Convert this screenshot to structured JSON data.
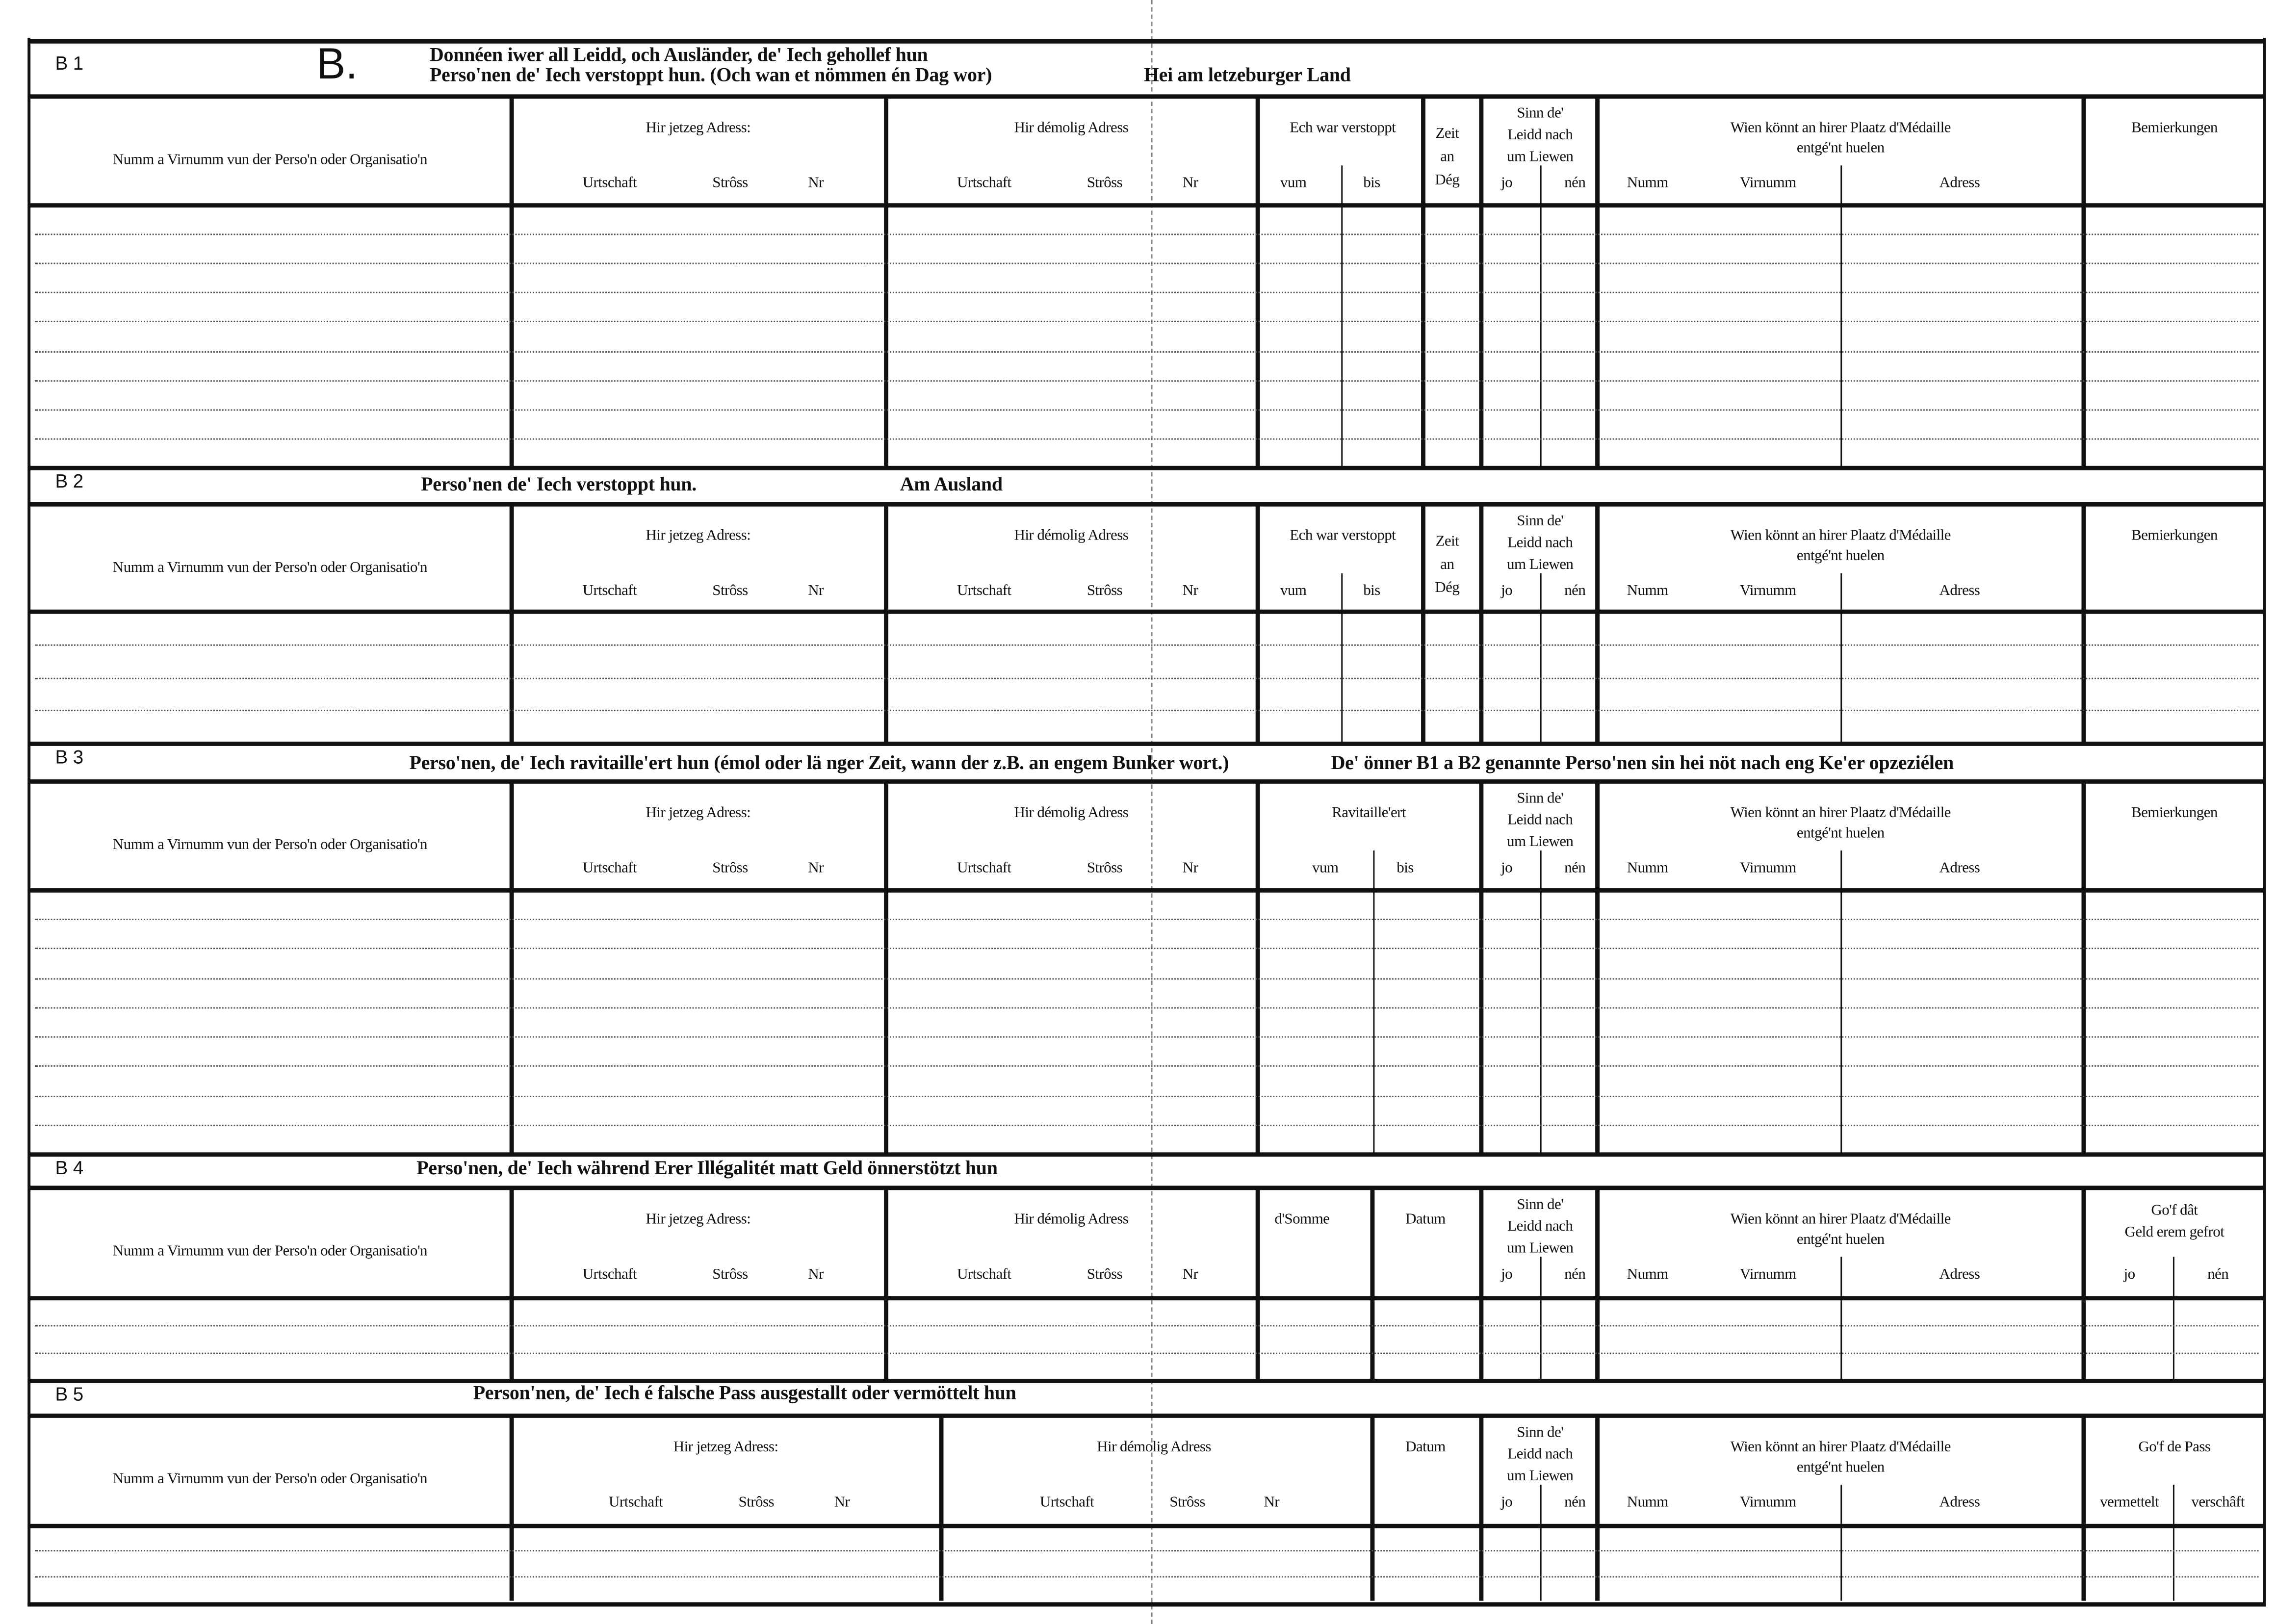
{
  "columns": {
    "name": "Numm a Virnumm vun der Perso'n oder Organisatio'n",
    "current_address": "Hir jetzeg Adress:",
    "former_address": "Hir démolig Adress",
    "locality": "Urtschaft",
    "street": "Strôss",
    "number": "Nr",
    "hidden": "Ech war verstoppt",
    "from": "vum",
    "to": "bis",
    "days": [
      "Zeit",
      "an",
      "Dég"
    ],
    "alive": [
      "Sinn de'",
      "Leidd nach",
      "um Liewen"
    ],
    "yes": "jo",
    "no": "nén",
    "medal": [
      "Wien könnt an hirer Plaatz d'Médaille",
      "entgé'nt huelen"
    ],
    "surname": "Numm",
    "first_name": "Virnumm",
    "address": "Adress",
    "remarks": "Bemierkungen",
    "supplied": "Ravitaille'ert",
    "sum": "d'Somme",
    "date": "Datum",
    "money_asked": [
      "Go'f dât",
      "Geld erem gefrot"
    ],
    "passport": "Go'f de Pass",
    "mediated": "vermettelt",
    "procured": "verschâft"
  },
  "part_letter": "B.",
  "sections": [
    {
      "code": "B 1",
      "title": [
        "Donnéen iwer all Leidd, och Ausländer, de' Iech gehollef hun",
        "Perso'nen de' Iech verstoppt hun. (Och wan et nömmen én Dag wor)"
      ],
      "region": "Hei am letzeburger Land"
    },
    {
      "code": "B 2",
      "title": [
        "Perso'nen de' Iech verstoppt hun."
      ],
      "region": "Am Ausland"
    },
    {
      "code": "B 3",
      "title": [
        "Perso'nen, de' Iech ravitaille'ert hun (émol oder lä nger Zeit, wann der z.B. an engem Bunker wort.)"
      ],
      "region": "De' önner B1 a B2 genannte Perso'nen sin hei nöt nach eng Ke'er opzeziélen"
    },
    {
      "code": "B 4",
      "title": [
        "Perso'nen, de' Iech während Erer Illégalitét matt Geld önnerstötzt hun"
      ]
    },
    {
      "code": "B 5",
      "title": [
        "Person'nen, de' Iech é falsche Pass ausgestallt oder vermöttelt hun"
      ]
    }
  ]
}
